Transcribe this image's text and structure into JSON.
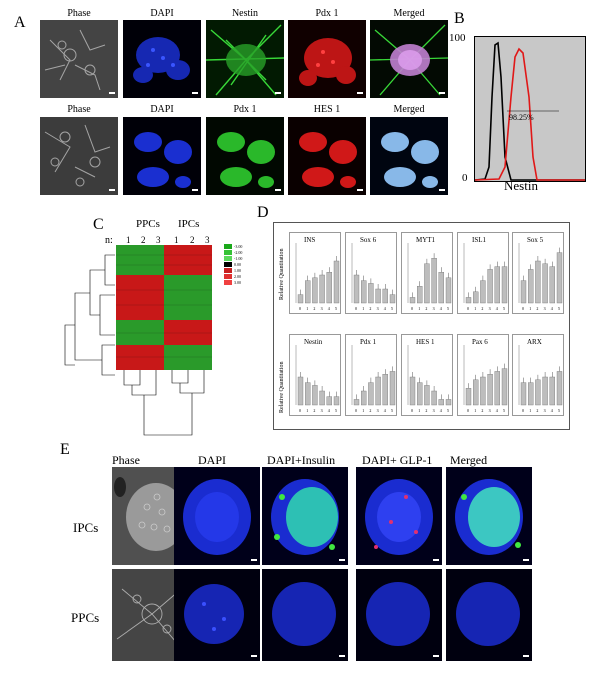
{
  "panel_labels": {
    "A": "A",
    "B": "B",
    "C": "C",
    "D": "D",
    "E": "E"
  },
  "panel_a": {
    "row1_titles": [
      "Phase",
      "DAPI",
      "Nestin",
      "Pdx 1",
      "Merged"
    ],
    "row2_titles": [
      "Phase",
      "DAPI",
      "Pdx 1",
      "HES 1",
      "Merged"
    ]
  },
  "panel_b": {
    "y_top": "100",
    "y_bottom": "0",
    "xlabel": "Nestin",
    "stat": "98.25%"
  },
  "panel_c": {
    "group1": "PPCs",
    "group2": "IPCs",
    "n_label": "n:",
    "cols": [
      "1",
      "2",
      "3",
      "1",
      "2",
      "3"
    ],
    "legend": [
      "-3.00",
      "-2.00",
      "-1.00",
      "0.00",
      "1.00",
      "2.00",
      "3.00"
    ],
    "legend_colors": [
      "#1aa81a",
      "#35c235",
      "#5ad85a",
      "#000000",
      "#c82020",
      "#e03030",
      "#f04040"
    ]
  },
  "panel_d": {
    "ylabel": "Relative Quantitation",
    "xticks": [
      "0",
      "1",
      "2",
      "3",
      "4",
      "5"
    ],
    "genes_row1": [
      "INS",
      "Sox 6",
      "MYT1",
      "ISL1",
      "Sox 5"
    ],
    "genes_row2": [
      "Nestin",
      "Pdx 1",
      "HES 1",
      "Pax 6",
      "ARX"
    ],
    "values_row1": [
      [
        0.3,
        0.8,
        0.9,
        1.0,
        1.1,
        1.5
      ],
      [
        1.0,
        0.8,
        0.7,
        0.5,
        0.5,
        0.3
      ],
      [
        0.2,
        0.6,
        1.4,
        1.6,
        1.1,
        0.9
      ],
      [
        0.2,
        0.4,
        0.8,
        1.2,
        1.3,
        1.3
      ],
      [
        0.8,
        1.2,
        1.5,
        1.4,
        1.3,
        1.8
      ]
    ],
    "values_row2": [
      [
        1.0,
        0.8,
        0.7,
        0.5,
        0.3,
        0.3
      ],
      [
        0.2,
        0.5,
        0.8,
        1.0,
        1.1,
        1.2
      ],
      [
        1.0,
        0.8,
        0.7,
        0.5,
        0.2,
        0.2
      ],
      [
        0.6,
        0.9,
        1.0,
        1.1,
        1.2,
        1.3
      ],
      [
        0.8,
        0.8,
        0.9,
        1.0,
        1.0,
        1.2
      ]
    ],
    "ymax": 2.0
  },
  "panel_e": {
    "titles": [
      "Phase",
      "DAPI",
      "DAPI+Insulin",
      "DAPI+ GLP-1",
      "Merged"
    ],
    "row_labels": [
      "IPCs",
      "PPCs"
    ]
  }
}
